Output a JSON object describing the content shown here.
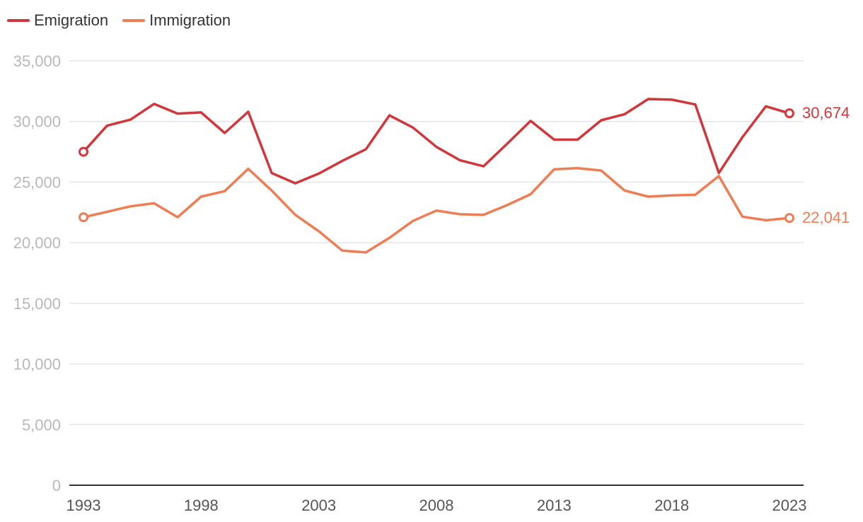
{
  "chart_data": {
    "type": "line",
    "x": [
      1993,
      1994,
      1995,
      1996,
      1997,
      1998,
      1999,
      2000,
      2001,
      2002,
      2003,
      2004,
      2005,
      2006,
      2007,
      2008,
      2009,
      2010,
      2011,
      2012,
      2013,
      2014,
      2015,
      2016,
      2017,
      2018,
      2019,
      2020,
      2021,
      2022,
      2023
    ],
    "series": [
      {
        "name": "Emigration",
        "color": "#d1373a",
        "values": [
          27500,
          29650,
          30150,
          31450,
          30650,
          30750,
          29050,
          30800,
          25750,
          24900,
          25700,
          26750,
          27700,
          30500,
          29500,
          27900,
          26800,
          26300,
          28150,
          30050,
          28500,
          28500,
          30100,
          30600,
          31850,
          31800,
          31400,
          25750,
          28700,
          31250,
          30674
        ]
      },
      {
        "name": "Immigration",
        "color": "#ee7d54",
        "values": [
          22100,
          22550,
          23000,
          23250,
          22100,
          23800,
          24250,
          26100,
          24300,
          22300,
          20950,
          19350,
          19200,
          20400,
          21800,
          22650,
          22350,
          22300,
          23100,
          24000,
          26050,
          26150,
          25950,
          24300,
          23800,
          23900,
          23950,
          25500,
          22150,
          21850,
          22041
        ]
      }
    ],
    "end_labels": [
      "30,674",
      "22,041"
    ],
    "y_ticks": [
      0,
      5000,
      10000,
      15000,
      20000,
      25000,
      30000,
      35000
    ],
    "y_tick_labels": [
      "0",
      "5,000",
      "10,000",
      "15,000",
      "20,000",
      "25,000",
      "30,000",
      "35,000"
    ],
    "x_ticks": [
      1993,
      1998,
      2003,
      2008,
      2013,
      2018,
      2023
    ],
    "x_tick_labels": [
      "1993",
      "1998",
      "2003",
      "2008",
      "2013",
      "2018",
      "2023"
    ],
    "ylim": [
      0,
      35000
    ],
    "xlim": [
      1993,
      2023
    ],
    "grid": true,
    "legend_position": "top-left",
    "gridline_color": "#e5e5e5",
    "tick_label_color": "#b8b8b8"
  }
}
